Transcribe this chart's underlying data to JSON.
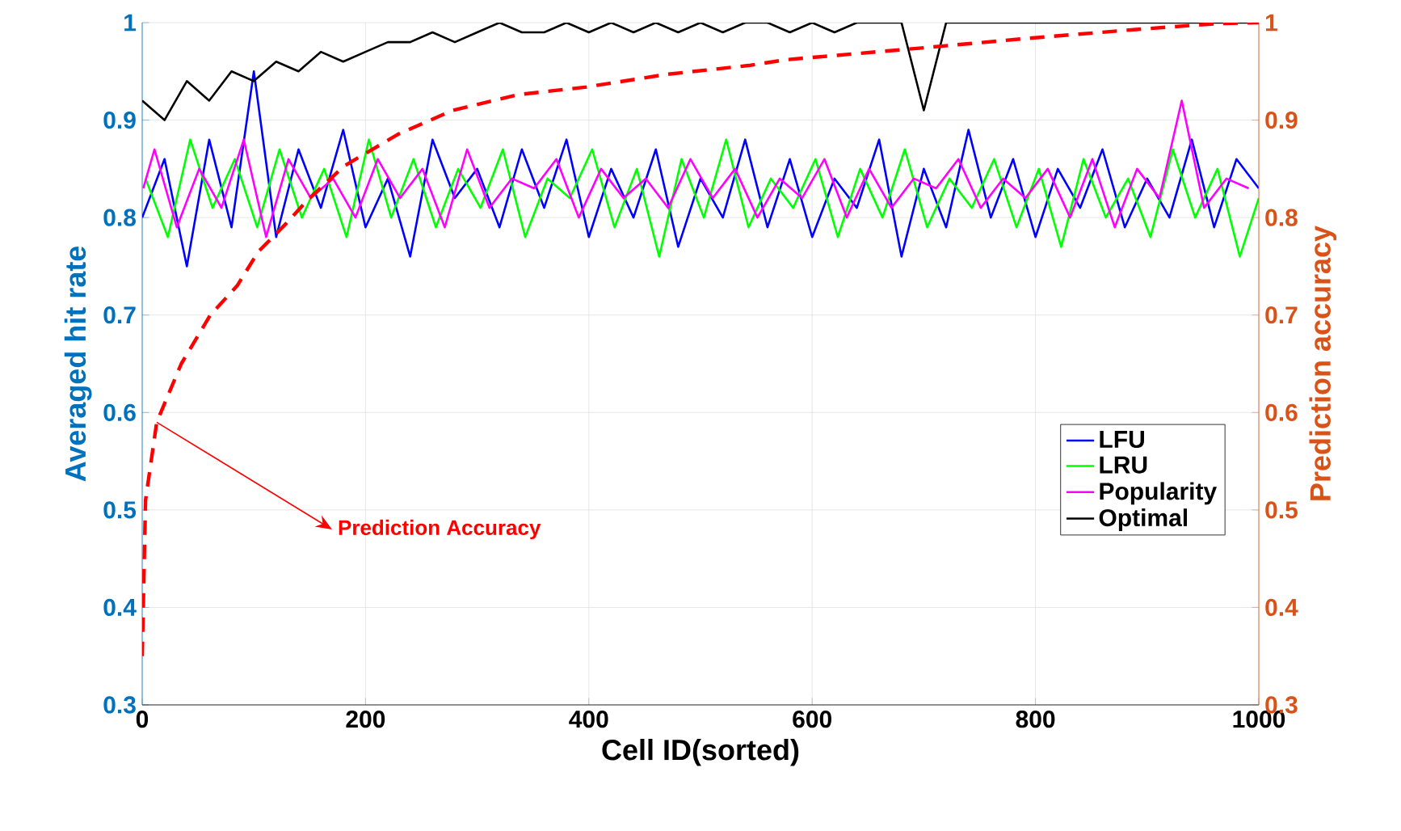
{
  "chart_data": {
    "type": "line",
    "xlabel": "Cell ID(sorted)",
    "ylabel": "Averaged hit rate",
    "y2label": "Prediction accuracy",
    "xlim": [
      0,
      1000
    ],
    "xticks": [
      0,
      200,
      400,
      600,
      800,
      1000
    ],
    "ylim": [
      0.3,
      1
    ],
    "yticks": [
      0.3,
      0.4,
      0.5,
      0.6,
      0.7,
      0.8,
      0.9,
      1
    ],
    "y2lim": [
      0.3,
      1
    ],
    "y2ticks": [
      0.3,
      0.4,
      0.5,
      0.6,
      0.7,
      0.8,
      0.9,
      1
    ],
    "grid": true,
    "legend": "right",
    "marker": "none",
    "annotations": [
      {
        "text": "Prediction Accuracy",
        "x": 13,
        "y": 0.59
      }
    ],
    "series": [
      {
        "name": "LFU",
        "color": "#0000ff",
        "x": [
          0,
          20,
          40,
          60,
          80,
          100,
          120,
          140,
          160,
          180,
          200,
          220,
          240,
          260,
          280,
          300,
          320,
          340,
          360,
          380,
          400,
          420,
          440,
          460,
          480,
          500,
          520,
          540,
          560,
          580,
          600,
          620,
          640,
          660,
          680,
          700,
          720,
          740,
          760,
          780,
          800,
          820,
          840,
          860,
          880,
          900,
          920,
          940,
          960,
          980,
          1000
        ],
        "values": [
          0.8,
          0.86,
          0.75,
          0.88,
          0.79,
          0.95,
          0.78,
          0.87,
          0.81,
          0.89,
          0.79,
          0.84,
          0.76,
          0.88,
          0.82,
          0.85,
          0.79,
          0.87,
          0.81,
          0.88,
          0.78,
          0.85,
          0.8,
          0.87,
          0.77,
          0.84,
          0.8,
          0.88,
          0.79,
          0.86,
          0.78,
          0.84,
          0.81,
          0.88,
          0.76,
          0.85,
          0.79,
          0.89,
          0.8,
          0.86,
          0.78,
          0.85,
          0.81,
          0.87,
          0.79,
          0.84,
          0.8,
          0.88,
          0.79,
          0.86,
          0.83
        ]
      },
      {
        "name": "LRU",
        "color": "#00ff00",
        "x": [
          3,
          23,
          43,
          63,
          83,
          103,
          123,
          143,
          163,
          183,
          203,
          223,
          243,
          263,
          283,
          303,
          323,
          343,
          363,
          383,
          403,
          423,
          443,
          463,
          483,
          503,
          523,
          543,
          563,
          583,
          603,
          623,
          643,
          663,
          683,
          703,
          723,
          743,
          763,
          783,
          803,
          823,
          843,
          863,
          883,
          903,
          923,
          943,
          963,
          983,
          1000
        ],
        "values": [
          0.84,
          0.78,
          0.88,
          0.81,
          0.86,
          0.79,
          0.87,
          0.8,
          0.85,
          0.78,
          0.88,
          0.8,
          0.86,
          0.79,
          0.85,
          0.81,
          0.87,
          0.78,
          0.84,
          0.82,
          0.87,
          0.79,
          0.85,
          0.76,
          0.86,
          0.8,
          0.88,
          0.79,
          0.84,
          0.81,
          0.86,
          0.78,
          0.85,
          0.8,
          0.87,
          0.79,
          0.84,
          0.81,
          0.86,
          0.79,
          0.85,
          0.77,
          0.86,
          0.8,
          0.84,
          0.78,
          0.87,
          0.8,
          0.85,
          0.76,
          0.82
        ]
      },
      {
        "name": "Popularity",
        "color": "#ff00ff",
        "x": [
          1,
          11,
          31,
          51,
          71,
          91,
          111,
          131,
          151,
          171,
          191,
          211,
          231,
          251,
          271,
          291,
          311,
          331,
          351,
          371,
          391,
          411,
          431,
          451,
          471,
          491,
          511,
          531,
          551,
          571,
          591,
          611,
          631,
          651,
          671,
          691,
          711,
          731,
          751,
          771,
          791,
          811,
          831,
          851,
          871,
          891,
          911,
          931,
          951,
          971,
          991
        ],
        "values": [
          0.83,
          0.87,
          0.79,
          0.85,
          0.81,
          0.88,
          0.78,
          0.86,
          0.82,
          0.84,
          0.8,
          0.86,
          0.82,
          0.85,
          0.79,
          0.87,
          0.81,
          0.84,
          0.83,
          0.86,
          0.8,
          0.85,
          0.82,
          0.84,
          0.81,
          0.86,
          0.82,
          0.85,
          0.8,
          0.84,
          0.82,
          0.86,
          0.8,
          0.85,
          0.81,
          0.84,
          0.83,
          0.86,
          0.81,
          0.84,
          0.82,
          0.85,
          0.8,
          0.86,
          0.79,
          0.85,
          0.82,
          0.92,
          0.81,
          0.84,
          0.83
        ]
      },
      {
        "name": "Optimal",
        "color": "#000000",
        "x": [
          0,
          20,
          40,
          60,
          80,
          100,
          120,
          140,
          160,
          180,
          200,
          220,
          240,
          260,
          280,
          300,
          320,
          340,
          360,
          380,
          400,
          420,
          440,
          460,
          480,
          500,
          520,
          540,
          560,
          580,
          600,
          620,
          640,
          660,
          680,
          700,
          720,
          740,
          760,
          780,
          800,
          820,
          840,
          860,
          880,
          900,
          920,
          940,
          960,
          980,
          1000
        ],
        "values": [
          0.92,
          0.9,
          0.94,
          0.92,
          0.95,
          0.94,
          0.96,
          0.95,
          0.97,
          0.96,
          0.97,
          0.98,
          0.98,
          0.99,
          0.98,
          0.99,
          1.0,
          0.99,
          0.99,
          1.0,
          0.99,
          1.0,
          0.99,
          1.0,
          0.99,
          1.0,
          0.99,
          1.0,
          1.0,
          0.99,
          1.0,
          0.99,
          1.0,
          1.0,
          1.0,
          0.91,
          1.0,
          1.0,
          1.0,
          1.0,
          1.0,
          1.0,
          1.0,
          1.0,
          1.0,
          1.0,
          1.0,
          1.0,
          1.0,
          1.0,
          1.0
        ]
      },
      {
        "color": "#ff0000",
        "axis": "y2",
        "line_style": "dashed",
        "x": [
          0,
          3,
          13,
          35,
          61,
          85,
          104,
          129,
          148,
          181,
          230,
          278,
          336,
          398,
          470,
          543,
          577,
          698,
          794,
          890,
          962,
          1000
        ],
        "values": [
          0.35,
          0.51,
          0.59,
          0.65,
          0.7,
          0.73,
          0.765,
          0.794,
          0.818,
          0.853,
          0.886,
          0.91,
          0.926,
          0.934,
          0.947,
          0.956,
          0.962,
          0.974,
          0.984,
          0.993,
          0.999,
          1.0
        ]
      }
    ]
  }
}
